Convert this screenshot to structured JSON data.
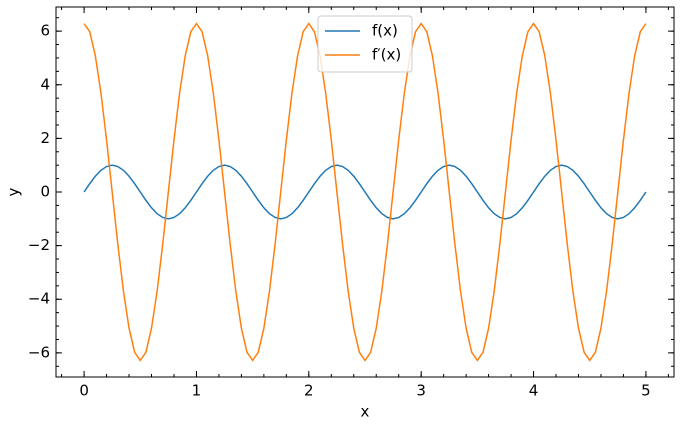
{
  "chart_data": {
    "type": "line",
    "x": [
      0,
      0.05,
      0.1,
      0.15,
      0.2,
      0.25,
      0.3,
      0.35,
      0.4,
      0.45,
      0.5,
      0.55,
      0.6,
      0.65,
      0.7,
      0.75,
      0.8,
      0.85,
      0.9,
      0.95,
      1,
      1.05,
      1.1,
      1.15,
      1.2,
      1.25,
      1.3,
      1.35,
      1.4,
      1.45,
      1.5,
      1.55,
      1.6,
      1.65,
      1.7,
      1.75,
      1.8,
      1.85,
      1.9,
      1.95,
      2,
      2.05,
      2.1,
      2.15,
      2.2,
      2.25,
      2.3,
      2.35,
      2.4,
      2.45,
      2.5,
      2.55,
      2.6,
      2.65,
      2.7,
      2.75,
      2.8,
      2.85,
      2.9,
      2.95,
      3,
      3.05,
      3.1,
      3.15,
      3.2,
      3.25,
      3.3,
      3.35,
      3.4,
      3.45,
      3.5,
      3.55,
      3.6,
      3.65,
      3.7,
      3.75,
      3.8,
      3.85,
      3.9,
      3.95,
      4,
      4.05,
      4.1,
      4.15,
      4.2,
      4.25,
      4.3,
      4.35,
      4.4,
      4.45,
      4.5,
      4.55,
      4.6,
      4.65,
      4.7,
      4.75,
      4.8,
      4.85,
      4.9,
      4.95,
      5
    ],
    "series": [
      {
        "name": "f(x)",
        "color": "#1f77b4",
        "values": [
          0,
          0.31,
          0.59,
          0.81,
          0.95,
          1,
          0.95,
          0.81,
          0.59,
          0.31,
          0,
          -0.31,
          -0.59,
          -0.81,
          -0.95,
          -1,
          -0.95,
          -0.81,
          -0.59,
          -0.31,
          0,
          0.31,
          0.59,
          0.81,
          0.95,
          1,
          0.95,
          0.81,
          0.59,
          0.31,
          0,
          -0.31,
          -0.59,
          -0.81,
          -0.95,
          -1,
          -0.95,
          -0.81,
          -0.59,
          -0.31,
          0,
          0.31,
          0.59,
          0.81,
          0.95,
          1,
          0.95,
          0.81,
          0.59,
          0.31,
          0,
          -0.31,
          -0.59,
          -0.81,
          -0.95,
          -1,
          -0.95,
          -0.81,
          -0.59,
          -0.31,
          0,
          0.31,
          0.59,
          0.81,
          0.95,
          1,
          0.95,
          0.81,
          0.59,
          0.31,
          0,
          -0.31,
          -0.59,
          -0.81,
          -0.95,
          -1,
          -0.95,
          -0.81,
          -0.59,
          -0.31,
          0,
          0.31,
          0.59,
          0.81,
          0.95,
          1,
          0.95,
          0.81,
          0.59,
          0.31,
          0,
          -0.31,
          -0.59,
          -0.81,
          -0.95,
          -1,
          -0.95,
          -0.81,
          -0.59,
          -0.31,
          0
        ]
      },
      {
        "name": "f′(x)",
        "color": "#ff7f0e",
        "values": [
          6.28,
          5.98,
          5.08,
          3.69,
          1.94,
          0,
          -1.94,
          -3.69,
          -5.08,
          -5.98,
          -6.28,
          -5.98,
          -5.08,
          -3.69,
          -1.94,
          0,
          1.94,
          3.69,
          5.08,
          5.98,
          6.28,
          5.98,
          5.08,
          3.69,
          1.94,
          0,
          -1.94,
          -3.69,
          -5.08,
          -5.98,
          -6.28,
          -5.98,
          -5.08,
          -3.69,
          -1.94,
          0,
          1.94,
          3.69,
          5.08,
          5.98,
          6.28,
          5.98,
          5.08,
          3.69,
          1.94,
          0,
          -1.94,
          -3.69,
          -5.08,
          -5.98,
          -6.28,
          -5.98,
          -5.08,
          -3.69,
          -1.94,
          0,
          1.94,
          3.69,
          5.08,
          5.98,
          6.28,
          5.98,
          5.08,
          3.69,
          1.94,
          0,
          -1.94,
          -3.69,
          -5.08,
          -5.98,
          -6.28,
          -5.98,
          -5.08,
          -3.69,
          -1.94,
          0,
          1.94,
          3.69,
          5.08,
          5.98,
          6.28,
          5.98,
          5.08,
          3.69,
          1.94,
          0,
          -1.94,
          -3.69,
          -5.08,
          -5.98,
          -6.28,
          -5.98,
          -5.08,
          -3.69,
          -1.94,
          0,
          1.94,
          3.69,
          5.08,
          5.98,
          6.28
        ]
      }
    ],
    "x_label": "x",
    "y_label": "y",
    "xlim": [
      -0.25,
      5.25
    ],
    "xticks": [
      0,
      1,
      2,
      3,
      4,
      5
    ],
    "ylim": [
      -6.9,
      6.9
    ],
    "yticks": [
      {
        "value": -6,
        "label": "−6"
      },
      {
        "value": -4,
        "label": "−4"
      },
      {
        "value": -2,
        "label": "−2"
      },
      0,
      2,
      4,
      6
    ],
    "grid": false,
    "legend": "upper center"
  }
}
